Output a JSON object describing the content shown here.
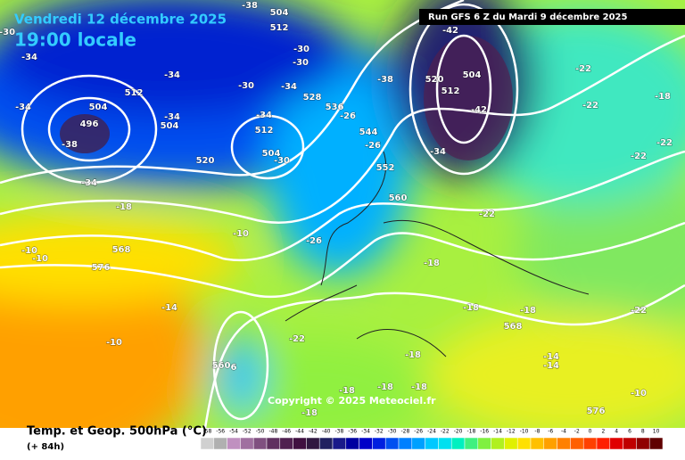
{
  "header": {
    "date": "Vendredi 12 décembre 2025",
    "time": "19:00 locale",
    "run": "Run GFS 6 Z du Mardi 9 décembre 2025"
  },
  "map": {
    "copyright": "Copyright © 2025 Meteociel.fr",
    "contour_labels": [
      "-30",
      "-38",
      "504",
      "512",
      "-34",
      "-34",
      "512",
      "504",
      "496",
      "-38",
      "-34",
      "-34",
      "-34",
      "504",
      "-30",
      "-34",
      "-30",
      "-30",
      "528",
      "-34",
      "512",
      "504",
      "-30",
      "520",
      "536",
      "-26",
      "544",
      "-26",
      "552",
      "560",
      "-38",
      "-42",
      "520",
      "512",
      "504",
      "-42",
      "-34",
      "-22",
      "-22",
      "-18",
      "-22",
      "-22",
      "-22",
      "-18",
      "-10",
      "-10",
      "568",
      "576",
      "-10",
      "-26",
      "-18",
      "-18",
      "568",
      "-18",
      "-14",
      "-10",
      "-22",
      "560",
      "6",
      "-18",
      "-18",
      "-18",
      "-18",
      "-18",
      "-14",
      "-14",
      "-22",
      "576",
      "-10"
    ]
  },
  "footer": {
    "title": "Temp. et Geop. 500hPa (°C)",
    "lead": "(+ 84h)",
    "scale": {
      "values": [
        -58,
        -56,
        -54,
        -52,
        -50,
        -48,
        -46,
        -44,
        -42,
        -40,
        -38,
        -36,
        -34,
        -32,
        -30,
        -28,
        -26,
        -24,
        -22,
        -20,
        -18,
        -16,
        -14,
        -12,
        -10,
        -8,
        -6,
        -4,
        -2,
        0,
        2,
        4,
        6,
        8,
        10
      ],
      "colors": [
        "#d0d0d0",
        "#b0b0b0",
        "#c090c0",
        "#a070a0",
        "#805080",
        "#603060",
        "#502050",
        "#401040",
        "#301840",
        "#202060",
        "#1a1a8a",
        "#0000a0",
        "#0000c8",
        "#0020e0",
        "#0050f0",
        "#0080ff",
        "#00a0ff",
        "#00c8ff",
        "#00e0f0",
        "#00f0c0",
        "#40f080",
        "#80f040",
        "#b0f020",
        "#e0f000",
        "#ffe000",
        "#ffc000",
        "#ffa000",
        "#ff8000",
        "#ff6000",
        "#ff4000",
        "#ff2000",
        "#e00000",
        "#c00000",
        "#900000",
        "#600000"
      ]
    }
  }
}
